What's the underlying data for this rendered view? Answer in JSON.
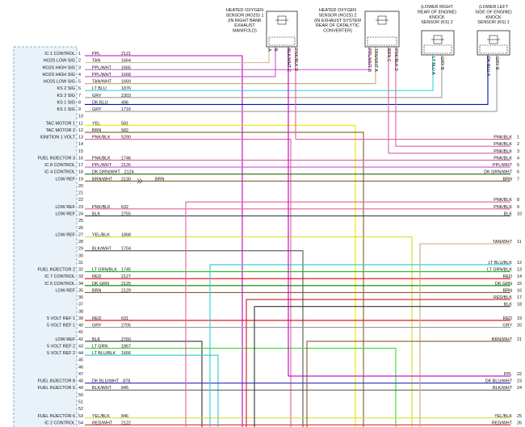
{
  "sensors": [
    {
      "label_lines": [
        "HEATED OXYGEN",
        "SENSOR (HO2S) 1",
        "(IN RIGHT BANK",
        "EXHAUST",
        "MANIFOLD)"
      ],
      "terminals": [
        {
          "pin": "A"
        },
        {
          "pin": "B"
        },
        {
          "wire": "BLK/WHT",
          "pin": "C"
        },
        {
          "wire": "PNK/BLK",
          "pin": "D"
        }
      ]
    },
    {
      "label_lines": [
        "HEATED OXYGEN",
        "SENSOR (HO2S) 2",
        "(IN EXHAUST SYSTEM",
        "REAR OF CATALYTIC",
        "CONVERTER)"
      ],
      "terminals": [
        {
          "wire": "PPL/WHT",
          "pin": "B"
        },
        {
          "wire": "TAN/WHT",
          "pin": "A"
        },
        {
          "wire": "BRN",
          "pin": "C"
        },
        {
          "wire": "PNK/BLK",
          "pin": "D"
        }
      ]
    },
    {
      "label_lines": [
        "(LOWER RIGHT",
        "REAR OF ENGINE)",
        "KNOCK",
        "SENSOR (KS) 2"
      ],
      "terminals": [
        {
          "wire": "LT BLU",
          "pin": "A"
        },
        {
          "wire": "GRY",
          "pin": "B"
        }
      ]
    },
    {
      "label_lines": [
        "(LOWER LEFT",
        "SIDE OF ENGINE)",
        "KNOCK",
        "SENSOR (KS) 1"
      ],
      "terminals": [
        {
          "wire": "DK BLU",
          "pin": "A"
        },
        {
          "wire": "GRY",
          "pin": "B"
        }
      ]
    }
  ],
  "connector": {
    "pins": [
      {
        "number": 1,
        "function": "IC 1 CONTROL",
        "color": "PPL",
        "circuit": 2121,
        "wire": "#c000c0"
      },
      {
        "number": 2,
        "function": "HO2S LOW SIG",
        "color": "TAN",
        "circuit": 1664,
        "wire": "#d2b48c"
      },
      {
        "number": 3,
        "function": "HO2S HIGH SIG",
        "color": "PPL/WHT",
        "circuit": 1665,
        "wire": "#d050d0"
      },
      {
        "number": 4,
        "function": "HO2S HIGH SIG",
        "color": "PPL/WHT",
        "circuit": 1668,
        "wire": "#d050d0"
      },
      {
        "number": 5,
        "function": "HO2S LOW SIG",
        "color": "TAN/WHT",
        "circuit": 1669,
        "wire": "#c8a878"
      },
      {
        "number": 6,
        "function": "KS 2 SIG",
        "color": "LT BLU",
        "circuit": 1876,
        "wire": "#30d8e0"
      },
      {
        "number": 7,
        "function": "KS 2 SIG",
        "color": "GRY",
        "circuit": 2303,
        "wire": "#9a9a9a"
      },
      {
        "number": 8,
        "function": "KS 1 SIG",
        "color": "DK BLU",
        "circuit": 496,
        "wire": "#0010c0"
      },
      {
        "number": 9,
        "function": "KS 1 SIG",
        "color": "GRY",
        "circuit": 1716,
        "wire": "#9a9a9a"
      },
      {
        "number": 10
      },
      {
        "number": 11,
        "function": "TAC MOTOR 1",
        "color": "YEL",
        "circuit": 581,
        "wire": "#e8e800"
      },
      {
        "number": 12,
        "function": "TAC MOTOR 2",
        "color": "BRN",
        "circuit": 582,
        "wire": "#8b5a2b"
      },
      {
        "number": 13,
        "function": "IGNITION 1 VOLT",
        "color": "PNK/BLK",
        "circuit": 5290,
        "wire": "#e060a0"
      },
      {
        "number": 14
      },
      {
        "number": 15
      },
      {
        "number": 16,
        "function": "FUEL INJECTOR 3",
        "color": "PNK/BLK",
        "circuit": 1746,
        "wire": "#e060a0"
      },
      {
        "number": 17,
        "function": "IC 8 CONTROL",
        "color": "PPL/WHT",
        "circuit": 2126,
        "wire": "#d050d0"
      },
      {
        "number": 18,
        "function": "IC 4 CONTROL",
        "color": "DK GRN/WHT",
        "circuit": 2124,
        "wire": "#1a6a1a"
      },
      {
        "number": 19,
        "function": "LOW REF",
        "color": "BRN/WHT",
        "circuit": 2130,
        "color_after": "BRN",
        "wire": "#8b5a2b"
      },
      {
        "number": 20
      },
      {
        "number": 21
      },
      {
        "number": 22
      },
      {
        "number": 23,
        "function": "LOW REF",
        "color": "PNK/BLK",
        "circuit": 632,
        "wire": "#e060a0"
      },
      {
        "number": 24,
        "function": "LOW REF",
        "color": "BLK",
        "circuit": 2755,
        "wire": "#333333"
      },
      {
        "number": 25
      },
      {
        "number": 26
      },
      {
        "number": 27,
        "function": "LOW REF",
        "color": "YEL/BLK",
        "circuit": 1868,
        "wire": "#d8d820"
      },
      {
        "number": 28
      },
      {
        "number": 29,
        "color": "BLK/WHT",
        "circuit": 1704,
        "wire": "#555555"
      },
      {
        "number": 30
      },
      {
        "number": 31
      },
      {
        "number": 32,
        "function": "FUEL INJECTOR 2",
        "color": "LT GRN/BLK",
        "circuit": 1745,
        "wire": "#20c020"
      },
      {
        "number": 33,
        "function": "IC 7 CONTROL",
        "color": "RED",
        "circuit": 2127,
        "wire": "#e00000"
      },
      {
        "number": 34,
        "function": "IC 5 CONTROL",
        "color": "DK GRN",
        "circuit": 2125,
        "wire": "#008000"
      },
      {
        "number": 35,
        "function": "LOW REF",
        "color": "BRN",
        "circuit": 2129,
        "wire": "#8b5a2b"
      },
      {
        "number": 36
      },
      {
        "number": 37
      },
      {
        "number": 38
      },
      {
        "number": 39,
        "function": "5 VOLT REF 1",
        "color": "RED",
        "circuit": 631,
        "wire": "#e00000"
      },
      {
        "number": 40,
        "function": "5 VOLT REF 1",
        "color": "GRY",
        "circuit": 2705,
        "wire": "#9a9a9a"
      },
      {
        "number": 41
      },
      {
        "number": 42,
        "function": "LOW REF",
        "color": "BLK",
        "circuit": 2760,
        "wire": "#333333"
      },
      {
        "number": 43,
        "function": "5 VOLT REF 2",
        "color": "LT GRN",
        "circuit": 1867,
        "wire": "#30e030"
      },
      {
        "number": 44,
        "function": "5 VOLT REF 2",
        "color": "LT BLU/BLK",
        "circuit": 1666,
        "wire": "#30c8d0"
      },
      {
        "number": 45
      },
      {
        "number": 46
      },
      {
        "number": 47
      },
      {
        "number": 48,
        "function": "FUEL INJECTOR 8",
        "color": "DK BLU/WHT",
        "circuit": 878,
        "wire": "#3030c0"
      },
      {
        "number": 49,
        "function": "FUEL INJECTOR 5",
        "color": "BLK/WHT",
        "circuit": 845,
        "wire": "#555555"
      },
      {
        "number": 50
      },
      {
        "number": 51
      },
      {
        "number": 52
      },
      {
        "number": 53,
        "function": "FUEL INJECTOR 6",
        "color": "YEL/BLK",
        "circuit": 846,
        "wire": "#d8d820"
      },
      {
        "number": 54,
        "function": "IC 2 CONTROL",
        "color": "RED/WHT",
        "circuit": 2122,
        "wire": "#e03030"
      }
    ]
  },
  "right_pins": [
    {
      "number": 1,
      "color": "PNK/BLK",
      "wire": "#e060a0"
    },
    {
      "number": 2,
      "color": "PNK/BLK",
      "wire": "#e060a0"
    },
    {
      "number": 3,
      "color": "PNK/BLK",
      "wire": "#e060a0"
    },
    {
      "number": 4,
      "color": "PNK/BLK",
      "wire": "#e060a0"
    },
    {
      "number": 5,
      "color": "PPL/WHT",
      "wire": "#d050d0"
    },
    {
      "number": 6,
      "color": "DK GRN/WHT",
      "wire": "#1a6a1a"
    },
    {
      "number": 7,
      "color": "BRN",
      "wire": "#8b5a2b"
    },
    {
      "number": 8,
      "color": "PNK/BLK",
      "wire": "#e060a0"
    },
    {
      "number": 9,
      "color": "PNK/BLK",
      "wire": "#e060a0"
    },
    {
      "number": 10,
      "color": "BLK",
      "wire": "#333333"
    },
    {
      "number": 11,
      "color": "TAN/WHT",
      "wire": "#c8a878"
    },
    {
      "number": 12,
      "color": "LT BLU/BLK",
      "wire": "#30c8d0"
    },
    {
      "number": 13,
      "color": "LT GRN/BLK",
      "wire": "#20c020"
    },
    {
      "number": 14,
      "color": "RED",
      "wire": "#e00000"
    },
    {
      "number": 15,
      "color": "DK GRN",
      "wire": "#008000"
    },
    {
      "number": 16,
      "color": "BRN",
      "wire": "#8b5a2b"
    },
    {
      "number": 17,
      "color": "RED/BLK",
      "wire": "#c02020"
    },
    {
      "number": 18,
      "color": "BLK",
      "wire": "#333333"
    },
    {
      "number": 19,
      "color": "RED",
      "wire": "#e00000"
    },
    {
      "number": 20,
      "color": "GRY",
      "wire": "#9a9a9a"
    },
    {
      "number": 21,
      "color": "BRN/WHT",
      "wire": "#8b5a2b"
    },
    {
      "number": 22,
      "color": "PPL",
      "wire": "#c000c0"
    },
    {
      "number": 23,
      "color": "DK BLU/WHT",
      "wire": "#3030c0"
    },
    {
      "number": 24,
      "color": "BLK/WHT",
      "wire": "#555555"
    },
    {
      "number": 25,
      "color": "YEL/BLK",
      "wire": "#d8d820"
    },
    {
      "number": 26,
      "color": "RED/WHT",
      "wire": "#e03030"
    }
  ]
}
